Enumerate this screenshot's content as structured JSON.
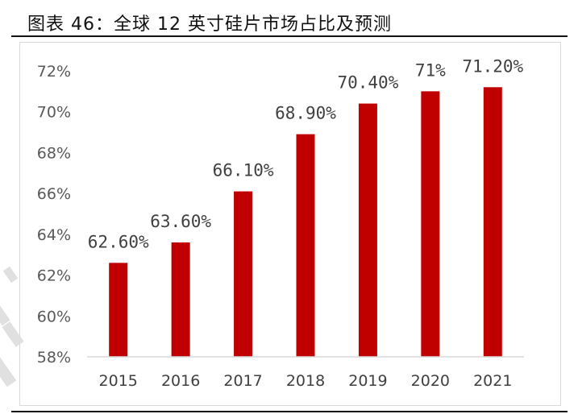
{
  "header": {
    "title": "图表 46：全球 12 英寸硅片市场占比及预测"
  },
  "colors": {
    "bar": "#C00000",
    "axis": "#d9d9d9",
    "watermark": "#e0e0e0"
  },
  "chart_data": {
    "type": "bar",
    "title": "",
    "xlabel": "",
    "ylabel": "",
    "categories": [
      "2015",
      "2016",
      "2017",
      "2018",
      "2019",
      "2020",
      "2021"
    ],
    "values": [
      62.6,
      63.6,
      66.1,
      68.9,
      70.4,
      71.0,
      71.2
    ],
    "data_labels": [
      "62.60%",
      "63.60%",
      "66.10%",
      "68.90%",
      "70.40%",
      "71%",
      "71.20%"
    ],
    "y_ticks": [
      58,
      60,
      62,
      64,
      66,
      68,
      70,
      72
    ],
    "y_tick_labels": [
      "58%",
      "60%",
      "62%",
      "64%",
      "66%",
      "68%",
      "70%",
      "72%"
    ],
    "ylim": [
      58,
      72
    ],
    "grid": false,
    "legend": "none"
  }
}
